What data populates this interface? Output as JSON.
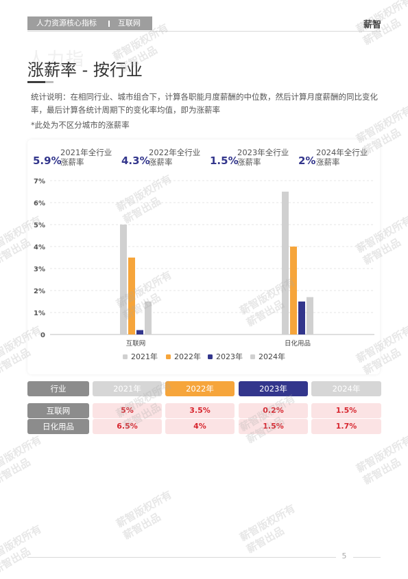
{
  "header": {
    "tag_left": "人力资源核心指标",
    "tag_right": "互联网",
    "brand": "薪智"
  },
  "page": {
    "ghost_title": "人力指",
    "title": "涨薪率 - 按行业",
    "desc": "统计说明：在相同行业、城市组合下，计算各职能月度薪酬的中位数，然后计算月度薪酬的同比变化率，最后计算各统计周期下的变化率均值，即为涨薪率",
    "note": "*此处为不区分城市的涨薪率",
    "page_number": "5"
  },
  "kpis": [
    {
      "value": "5.9%",
      "label1": "2021年全行业",
      "label2": "涨薪率"
    },
    {
      "value": "4.3%",
      "label1": "2022年全行业",
      "label2": "涨薪率"
    },
    {
      "value": "1.5%",
      "label1": "2023年全行业",
      "label2": "涨薪率"
    },
    {
      "value": "2%",
      "label1": "2024年全行业",
      "label2": "涨薪率"
    }
  ],
  "chart_data": {
    "type": "bar",
    "categories": [
      "互联网",
      "日化用品"
    ],
    "series": [
      {
        "name": "2021年",
        "color": "#d0d0d0",
        "values": [
          5,
          6.5
        ]
      },
      {
        "name": "2022年",
        "color": "#f6a53b",
        "values": [
          3.5,
          4
        ]
      },
      {
        "name": "2023年",
        "color": "#33368c",
        "values": [
          0.2,
          1.5
        ]
      },
      {
        "name": "2024年",
        "color": "#d0d0d0",
        "values": [
          1.5,
          1.7
        ]
      }
    ],
    "yticks": [
      "0",
      "1%",
      "2%",
      "3%",
      "4%",
      "5%",
      "6%",
      "7%"
    ],
    "ylim": [
      0,
      7
    ],
    "grid": true,
    "legend": "bottom"
  },
  "table": {
    "headers": [
      "行业",
      "2021年",
      "2022年",
      "2023年",
      "2024年"
    ],
    "header_colors": [
      "#8c8c8c",
      "#d6d6d6",
      "#f6a53b",
      "#33368c",
      "#d6d6d6"
    ],
    "rows": [
      {
        "label": "互联网",
        "values": [
          "5%",
          "3.5%",
          "0.2%",
          "1.5%"
        ]
      },
      {
        "label": "日化用品",
        "values": [
          "6.5%",
          "4%",
          "1.5%",
          "1.7%"
        ]
      }
    ]
  },
  "watermark": {
    "line1": "薪智版权所有",
    "line2": "薪智出品"
  }
}
